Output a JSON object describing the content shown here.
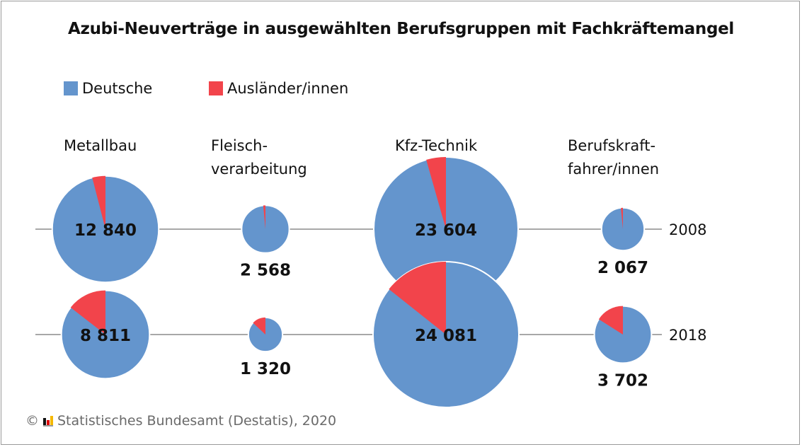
{
  "chart_data": {
    "type": "pie",
    "title": "Azubi-Neuverträge in ausgewählten Berufsgruppen mit Fachkräftemangel",
    "legend": [
      {
        "name": "Deutsche",
        "color": "#6495cd"
      },
      {
        "name": "Ausländer/innen",
        "color": "#f2444b"
      }
    ],
    "legend_placement": "top-left",
    "years": [
      "2008",
      "2018"
    ],
    "categories": [
      {
        "label_lines": [
          "Metallbau"
        ],
        "pies": [
          {
            "year": "2008",
            "total": 12840,
            "total_label": "12 840",
            "foreign_share_pct": 4
          },
          {
            "year": "2018",
            "total": 8811,
            "total_label": "8 811",
            "foreign_share_pct": 14.5
          }
        ]
      },
      {
        "label_lines": [
          "Fleisch-",
          "verarbeitung"
        ],
        "pies": [
          {
            "year": "2008",
            "total": 2568,
            "total_label": "2 568",
            "foreign_share_pct": 1.5
          },
          {
            "year": "2018",
            "total": 1320,
            "total_label": "1 320",
            "foreign_share_pct": 13
          }
        ]
      },
      {
        "label_lines": [
          "Kfz-Technik"
        ],
        "pies": [
          {
            "year": "2008",
            "total": 23604,
            "total_label": "23 604",
            "foreign_share_pct": 4.4
          },
          {
            "year": "2018",
            "total": 24081,
            "total_label": "24 081",
            "foreign_share_pct": 14.3
          }
        ]
      },
      {
        "label_lines": [
          "Berufskraft-",
          "fahrer/innen"
        ],
        "pies": [
          {
            "year": "2008",
            "total": 2067,
            "total_label": "2 067",
            "foreign_share_pct": 1.5
          },
          {
            "year": "2018",
            "total": 3702,
            "total_label": "3 702",
            "foreign_share_pct": 16
          }
        ]
      }
    ]
  },
  "footer": {
    "copyright": "©",
    "logo_icon": "destatis-logo-icon",
    "text": "Statistisches Bundesamt (Destatis), 2020"
  }
}
